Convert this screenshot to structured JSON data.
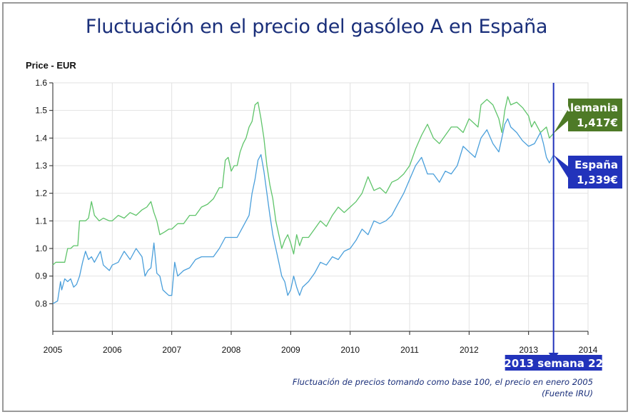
{
  "title": "Fluctuación en el precio del gasóleo A en España",
  "footnote": {
    "line1": "Fluctuación de precios tomando como base 100, el precio en enero 2005",
    "line2": "(Fuente IRU)"
  },
  "chart_data": {
    "type": "line",
    "title": "Fluctuación en el precio del gasóleo A en España",
    "ylabel": "Price - EUR",
    "xlabel": "",
    "xlim": [
      2005,
      2014
    ],
    "ylim": [
      0.7,
      1.6
    ],
    "y_ticks": [
      "0.8",
      "0.9",
      "1.0",
      "1.1",
      "1.2",
      "1.3",
      "1.4",
      "1.5",
      "1.6"
    ],
    "x_ticks": [
      "2005",
      "2006",
      "2007",
      "2008",
      "2009",
      "2010",
      "2011",
      "2012",
      "2013",
      "2014"
    ],
    "grid": true,
    "colors": {
      "alemania": "#5fc46a",
      "espana": "#4a9fdb",
      "marker": "#2233bb",
      "alemania_box": "#4e7a27",
      "espana_box": "#2233bb",
      "title": "#1a2f7a"
    },
    "marker": {
      "x": 2013.42,
      "label": "2013 semana 22"
    },
    "series": [
      {
        "name": "Alemania",
        "callout": [
          "Alemania",
          "1,417€"
        ],
        "x": [
          2005.0,
          2005.05,
          2005.1,
          2005.2,
          2005.25,
          2005.3,
          2005.35,
          2005.42,
          2005.45,
          2005.55,
          2005.6,
          2005.65,
          2005.7,
          2005.78,
          2005.85,
          2005.95,
          2006.0,
          2006.1,
          2006.2,
          2006.3,
          2006.4,
          2006.5,
          2006.58,
          2006.65,
          2006.7,
          2006.75,
          2006.8,
          2006.88,
          2006.95,
          2007.0,
          2007.1,
          2007.2,
          2007.3,
          2007.4,
          2007.5,
          2007.6,
          2007.7,
          2007.8,
          2007.85,
          2007.9,
          2007.95,
          2008.0,
          2008.05,
          2008.1,
          2008.15,
          2008.2,
          2008.25,
          2008.3,
          2008.35,
          2008.4,
          2008.45,
          2008.5,
          2008.55,
          2008.6,
          2008.65,
          2008.7,
          2008.75,
          2008.8,
          2008.85,
          2008.9,
          2008.95,
          2009.0,
          2009.05,
          2009.1,
          2009.15,
          2009.2,
          2009.3,
          2009.4,
          2009.5,
          2009.6,
          2009.7,
          2009.8,
          2009.9,
          2010.0,
          2010.1,
          2010.2,
          2010.3,
          2010.4,
          2010.5,
          2010.6,
          2010.7,
          2010.8,
          2010.9,
          2011.0,
          2011.1,
          2011.2,
          2011.3,
          2011.4,
          2011.5,
          2011.6,
          2011.7,
          2011.8,
          2011.9,
          2012.0,
          2012.1,
          2012.15,
          2012.2,
          2012.3,
          2012.4,
          2012.5,
          2012.55,
          2012.6,
          2012.65,
          2012.7,
          2012.8,
          2012.9,
          2013.0,
          2013.05,
          2013.1,
          2013.2,
          2013.3,
          2013.35,
          2013.42
        ],
        "values": [
          0.94,
          0.95,
          0.95,
          0.95,
          1.0,
          1.0,
          1.01,
          1.01,
          1.1,
          1.1,
          1.11,
          1.17,
          1.12,
          1.1,
          1.11,
          1.1,
          1.1,
          1.12,
          1.11,
          1.13,
          1.12,
          1.14,
          1.15,
          1.17,
          1.13,
          1.1,
          1.05,
          1.06,
          1.07,
          1.07,
          1.09,
          1.09,
          1.12,
          1.12,
          1.15,
          1.16,
          1.18,
          1.22,
          1.22,
          1.32,
          1.33,
          1.28,
          1.3,
          1.3,
          1.35,
          1.38,
          1.4,
          1.44,
          1.46,
          1.52,
          1.53,
          1.47,
          1.4,
          1.3,
          1.23,
          1.18,
          1.1,
          1.05,
          1.0,
          1.03,
          1.05,
          1.02,
          0.98,
          1.05,
          1.01,
          1.04,
          1.04,
          1.07,
          1.1,
          1.08,
          1.12,
          1.15,
          1.13,
          1.15,
          1.17,
          1.2,
          1.26,
          1.21,
          1.22,
          1.2,
          1.24,
          1.25,
          1.27,
          1.3,
          1.36,
          1.41,
          1.45,
          1.4,
          1.38,
          1.41,
          1.44,
          1.44,
          1.42,
          1.47,
          1.45,
          1.44,
          1.52,
          1.54,
          1.52,
          1.47,
          1.42,
          1.5,
          1.55,
          1.52,
          1.53,
          1.51,
          1.48,
          1.44,
          1.46,
          1.42,
          1.44,
          1.4,
          1.417
        ]
      },
      {
        "name": "España",
        "callout": [
          "España",
          "1,339€"
        ],
        "x": [
          2005.0,
          2005.08,
          2005.13,
          2005.15,
          2005.2,
          2005.25,
          2005.3,
          2005.35,
          2005.4,
          2005.45,
          2005.5,
          2005.55,
          2005.6,
          2005.65,
          2005.7,
          2005.75,
          2005.8,
          2005.85,
          2005.95,
          2006.0,
          2006.1,
          2006.2,
          2006.3,
          2006.4,
          2006.5,
          2006.55,
          2006.6,
          2006.65,
          2006.7,
          2006.75,
          2006.8,
          2006.85,
          2006.9,
          2006.95,
          2007.0,
          2007.05,
          2007.1,
          2007.2,
          2007.3,
          2007.4,
          2007.5,
          2007.6,
          2007.7,
          2007.8,
          2007.9,
          2008.0,
          2008.1,
          2008.2,
          2008.3,
          2008.35,
          2008.4,
          2008.45,
          2008.5,
          2008.55,
          2008.6,
          2008.65,
          2008.7,
          2008.75,
          2008.8,
          2008.85,
          2008.9,
          2008.95,
          2009.0,
          2009.05,
          2009.1,
          2009.15,
          2009.2,
          2009.3,
          2009.4,
          2009.5,
          2009.6,
          2009.7,
          2009.8,
          2009.9,
          2010.0,
          2010.1,
          2010.2,
          2010.3,
          2010.4,
          2010.5,
          2010.6,
          2010.7,
          2010.8,
          2010.9,
          2011.0,
          2011.1,
          2011.2,
          2011.3,
          2011.4,
          2011.5,
          2011.6,
          2011.7,
          2011.8,
          2011.9,
          2012.0,
          2012.1,
          2012.2,
          2012.3,
          2012.4,
          2012.5,
          2012.55,
          2012.6,
          2012.65,
          2012.7,
          2012.8,
          2012.9,
          2013.0,
          2013.1,
          2013.2,
          2013.25,
          2013.3,
          2013.35,
          2013.42
        ],
        "values": [
          0.8,
          0.81,
          0.88,
          0.85,
          0.89,
          0.88,
          0.89,
          0.86,
          0.87,
          0.9,
          0.95,
          0.99,
          0.96,
          0.97,
          0.95,
          0.97,
          0.99,
          0.94,
          0.92,
          0.94,
          0.95,
          0.99,
          0.96,
          1.0,
          0.97,
          0.9,
          0.92,
          0.93,
          1.02,
          0.91,
          0.9,
          0.85,
          0.84,
          0.83,
          0.83,
          0.95,
          0.9,
          0.92,
          0.93,
          0.96,
          0.97,
          0.97,
          0.97,
          1.0,
          1.04,
          1.04,
          1.04,
          1.08,
          1.12,
          1.2,
          1.25,
          1.32,
          1.34,
          1.28,
          1.2,
          1.12,
          1.05,
          1.0,
          0.95,
          0.9,
          0.88,
          0.83,
          0.85,
          0.9,
          0.86,
          0.83,
          0.86,
          0.88,
          0.91,
          0.95,
          0.94,
          0.97,
          0.96,
          0.99,
          1.0,
          1.03,
          1.07,
          1.05,
          1.1,
          1.09,
          1.1,
          1.12,
          1.16,
          1.2,
          1.25,
          1.3,
          1.33,
          1.27,
          1.27,
          1.24,
          1.28,
          1.27,
          1.3,
          1.37,
          1.35,
          1.33,
          1.4,
          1.43,
          1.38,
          1.35,
          1.4,
          1.45,
          1.47,
          1.44,
          1.42,
          1.39,
          1.37,
          1.38,
          1.42,
          1.38,
          1.33,
          1.31,
          1.339
        ]
      }
    ]
  }
}
